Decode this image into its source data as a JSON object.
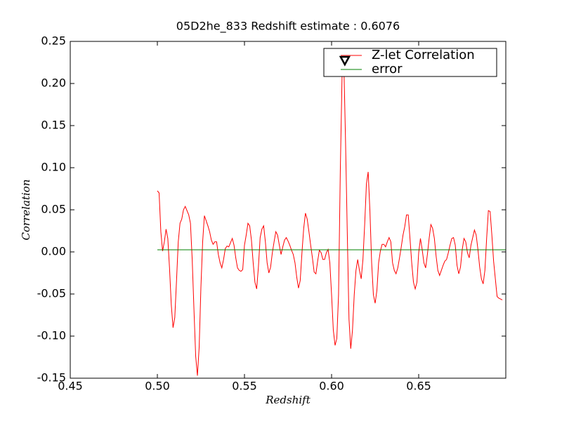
{
  "chart_data": {
    "type": "line",
    "title": "05D2he_833 Redshift estimate : 0.6076",
    "xlabel": "Redshift",
    "ylabel": "Correlation",
    "xlim": [
      0.45,
      0.7
    ],
    "xticks": [
      0.45,
      {
        "value": 0.5,
        "label": "0.50"
      },
      0.55,
      {
        "value": 0.6,
        "label": "0.60"
      },
      0.65
    ],
    "ylim": [
      -0.15,
      0.25
    ],
    "yticks": [
      -0.15,
      {
        "value": -0.1,
        "label": "-0.10"
      },
      -0.05,
      {
        "value": 0,
        "label": "0.00"
      },
      0.05,
      {
        "value": 0.1,
        "label": "0.10"
      },
      0.15,
      {
        "value": 0.2,
        "label": "0.20"
      },
      0.25
    ],
    "legend": "upper right",
    "marker": {
      "x": 0.6076,
      "y": 0.2275
    },
    "series": [
      {
        "name": "Z-let Correlation",
        "color": "#ff0000",
        "x": [
          0.5,
          0.501,
          0.502,
          0.503,
          0.504,
          0.505,
          0.506,
          0.507,
          0.508,
          0.509,
          0.51,
          0.511,
          0.512,
          0.513,
          0.514,
          0.515,
          0.516,
          0.517,
          0.518,
          0.519,
          0.52,
          0.521,
          0.522,
          0.523,
          0.524,
          0.525,
          0.526,
          0.527,
          0.528,
          0.529,
          0.53,
          0.531,
          0.532,
          0.533,
          0.534,
          0.535,
          0.536,
          0.537,
          0.538,
          0.539,
          0.54,
          0.541,
          0.542,
          0.543,
          0.544,
          0.545,
          0.546,
          0.547,
          0.548,
          0.549,
          0.55,
          0.551,
          0.552,
          0.553,
          0.554,
          0.555,
          0.556,
          0.557,
          0.558,
          0.559,
          0.56,
          0.561,
          0.562,
          0.563,
          0.564,
          0.565,
          0.566,
          0.567,
          0.568,
          0.569,
          0.57,
          0.571,
          0.572,
          0.573,
          0.574,
          0.575,
          0.576,
          0.577,
          0.578,
          0.579,
          0.58,
          0.581,
          0.582,
          0.583,
          0.584,
          0.585,
          0.586,
          0.587,
          0.588,
          0.589,
          0.59,
          0.591,
          0.592,
          0.593,
          0.594,
          0.595,
          0.596,
          0.597,
          0.598,
          0.599,
          0.6,
          0.601,
          0.602,
          0.603,
          0.604,
          0.605,
          0.606,
          0.607,
          0.608,
          0.609,
          0.61,
          0.611,
          0.612,
          0.613,
          0.614,
          0.615,
          0.616,
          0.617,
          0.618,
          0.619,
          0.62,
          0.621,
          0.622,
          0.623,
          0.624,
          0.625,
          0.626,
          0.627,
          0.628,
          0.629,
          0.63,
          0.631,
          0.632,
          0.633,
          0.634,
          0.635,
          0.636,
          0.637,
          0.638,
          0.639,
          0.64,
          0.641,
          0.642,
          0.643,
          0.644,
          0.645,
          0.646,
          0.647,
          0.648,
          0.649,
          0.65,
          0.651,
          0.652,
          0.653,
          0.654,
          0.655,
          0.656,
          0.657,
          0.658,
          0.659,
          0.66,
          0.661,
          0.662,
          0.663,
          0.664,
          0.665,
          0.666,
          0.667,
          0.668,
          0.669,
          0.67,
          0.671,
          0.672,
          0.673,
          0.674,
          0.675,
          0.676,
          0.677,
          0.678,
          0.679,
          0.68,
          0.681,
          0.682,
          0.683,
          0.684,
          0.685,
          0.686,
          0.687,
          0.688,
          0.689,
          0.69,
          0.691,
          0.692,
          0.693,
          0.694,
          0.695,
          0.696,
          0.697,
          0.698
        ],
        "values": [
          0.0725,
          0.07,
          0.024,
          0.001,
          0.012,
          0.027,
          0.016,
          -0.02,
          -0.063,
          -0.09,
          -0.078,
          -0.034,
          0.012,
          0.034,
          0.039,
          0.05,
          0.054,
          0.049,
          0.044,
          0.034,
          -0.009,
          -0.068,
          -0.124,
          -0.147,
          -0.113,
          -0.042,
          0.012,
          0.043,
          0.037,
          0.031,
          0.024,
          0.014,
          0.009,
          0.012,
          0.012,
          -0.003,
          -0.013,
          -0.019,
          -0.009,
          0.004,
          0.007,
          0.006,
          0.011,
          0.016,
          0.008,
          -0.007,
          -0.019,
          -0.022,
          -0.023,
          -0.021,
          0.008,
          0.02,
          0.034,
          0.031,
          0.014,
          -0.013,
          -0.036,
          -0.044,
          -0.018,
          0.017,
          0.027,
          0.031,
          0.012,
          -0.013,
          -0.025,
          -0.018,
          -0.001,
          0.012,
          0.024,
          0.02,
          0.008,
          -0.003,
          0.006,
          0.014,
          0.017,
          0.013,
          0.008,
          0.002,
          -0.003,
          -0.013,
          -0.03,
          -0.043,
          -0.034,
          -0.001,
          0.028,
          0.046,
          0.039,
          0.024,
          0.008,
          -0.007,
          -0.024,
          -0.026,
          -0.011,
          0.002,
          -0.001,
          -0.009,
          -0.009,
          -0.001,
          0.003,
          -0.013,
          -0.051,
          -0.093,
          -0.111,
          -0.103,
          -0.051,
          0.095,
          0.2075,
          0.2275,
          0.1325,
          0.024,
          -0.08,
          -0.115,
          -0.093,
          -0.051,
          -0.022,
          -0.009,
          -0.022,
          -0.032,
          -0.009,
          0.0325,
          0.081,
          0.095,
          0.049,
          -0.013,
          -0.051,
          -0.061,
          -0.046,
          -0.013,
          0.001,
          0.009,
          0.009,
          0.006,
          0.012,
          0.017,
          0.012,
          -0.013,
          -0.022,
          -0.026,
          -0.019,
          -0.007,
          0.006,
          0.02,
          0.03,
          0.044,
          0.044,
          0.016,
          -0.013,
          -0.036,
          -0.044,
          -0.036,
          -0.001,
          0.016,
          0.003,
          -0.013,
          -0.019,
          -0.003,
          0.016,
          0.0325,
          0.028,
          0.016,
          -0.005,
          -0.022,
          -0.028,
          -0.022,
          -0.016,
          -0.011,
          -0.009,
          -0.001,
          0.008,
          0.016,
          0.017,
          0.008,
          -0.016,
          -0.026,
          -0.018,
          0.003,
          0.016,
          0.012,
          -0.001,
          -0.007,
          0.008,
          0.017,
          0.026,
          0.02,
          0.003,
          -0.018,
          -0.032,
          -0.038,
          -0.022,
          0.016,
          0.049,
          0.048,
          0.02,
          -0.011,
          -0.032,
          -0.053,
          -0.055,
          -0.056,
          -0.057
        ]
      },
      {
        "name": "error",
        "color": "#008000",
        "x": [
          0.5,
          0.7
        ],
        "values": [
          0.0025,
          0.0025
        ]
      }
    ]
  }
}
